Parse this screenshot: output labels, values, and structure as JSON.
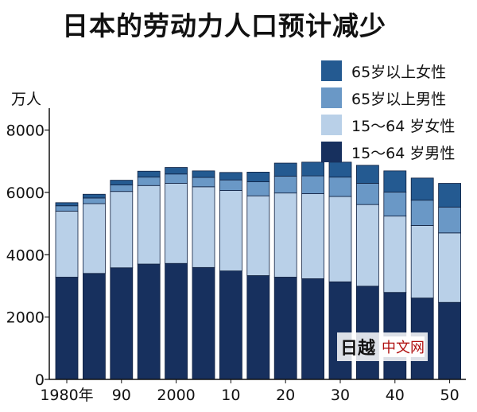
{
  "title": "日本的劳动力人口预计减少",
  "chart_data": {
    "type": "bar",
    "stacked": true,
    "title": "日本的劳动力人口预计减少",
    "ylabel": "万人",
    "ylim": [
      0,
      8600
    ],
    "yticks": [
      0,
      2000,
      4000,
      6000,
      8000
    ],
    "categories": [
      "1980",
      "1985",
      "1990",
      "1995",
      "2000",
      "2005",
      "2010",
      "2015",
      "2020",
      "2025",
      "2030",
      "2035",
      "2040",
      "2045",
      "2050"
    ],
    "x_tick_labels": [
      {
        "index": 0,
        "label": "1980年"
      },
      {
        "index": 2,
        "label": "90"
      },
      {
        "index": 4,
        "label": "2000"
      },
      {
        "index": 6,
        "label": "10"
      },
      {
        "index": 8,
        "label": "20"
      },
      {
        "index": 10,
        "label": "30"
      },
      {
        "index": 12,
        "label": "40"
      },
      {
        "index": 14,
        "label": "50"
      }
    ],
    "series": [
      {
        "name": "15～64 岁男性",
        "color": "#17305e",
        "values": [
          3280,
          3400,
          3580,
          3700,
          3720,
          3590,
          3480,
          3330,
          3280,
          3230,
          3130,
          2990,
          2790,
          2610,
          2470
        ]
      },
      {
        "name": "15～64 岁女性",
        "color": "#b9d0e8",
        "values": [
          2120,
          2240,
          2450,
          2520,
          2570,
          2590,
          2580,
          2560,
          2700,
          2730,
          2740,
          2620,
          2450,
          2330,
          2230
        ]
      },
      {
        "name": "65岁以上男性",
        "color": "#6a98c6",
        "values": [
          170,
          180,
          210,
          270,
          300,
          300,
          340,
          450,
          540,
          570,
          620,
          680,
          770,
          810,
          830
        ]
      },
      {
        "name": "65岁以上女性",
        "color": "#245a91",
        "values": [
          100,
          120,
          150,
          190,
          210,
          210,
          240,
          310,
          420,
          440,
          480,
          580,
          680,
          710,
          760
        ]
      }
    ],
    "legend_position": "top-right",
    "grid": false
  },
  "legend": [
    {
      "label": "65岁以上女性",
      "color": "#245a91"
    },
    {
      "label": "65岁以上男性",
      "color": "#6a98c6"
    },
    {
      "label": "15～64 岁女性",
      "color": "#b9d0e8"
    },
    {
      "label": "15～64 岁男性",
      "color": "#17305e"
    }
  ],
  "watermark": {
    "logo": "日越",
    "text": "中文网"
  }
}
